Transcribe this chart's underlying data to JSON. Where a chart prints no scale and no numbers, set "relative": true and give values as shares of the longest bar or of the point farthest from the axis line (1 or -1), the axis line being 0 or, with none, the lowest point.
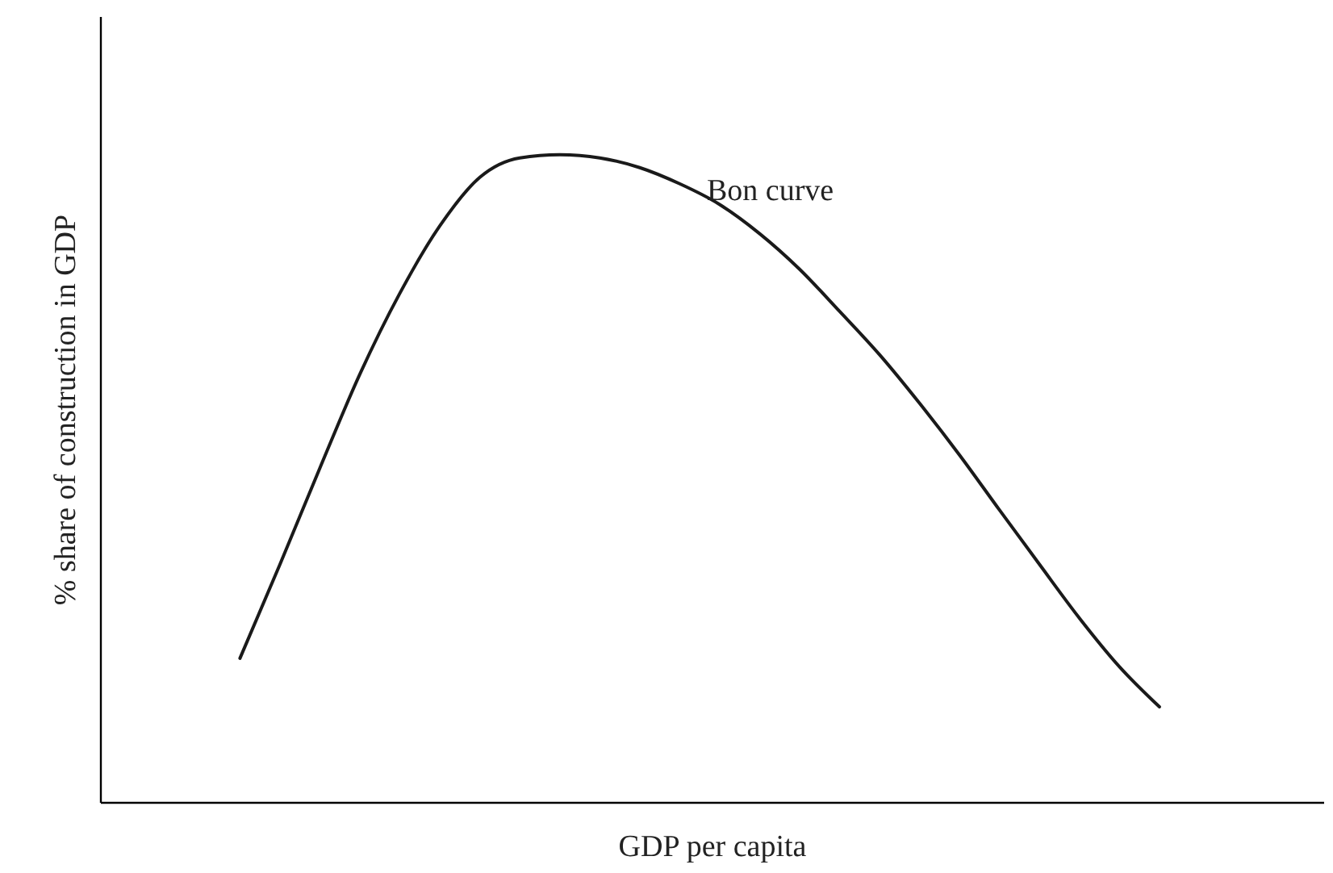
{
  "chart_data": {
    "type": "line",
    "relative": true,
    "tick_labels": false,
    "grid": false,
    "xlabel": "GDP per capita",
    "ylabel": "% share of construction in GDP",
    "annotations": [
      "Bon curve"
    ],
    "color": "#1a1a1a",
    "categories": [
      null,
      null,
      null,
      null,
      null,
      null,
      null,
      null,
      null,
      null,
      null,
      null,
      null,
      null,
      null,
      null,
      null,
      null,
      null,
      null,
      null,
      null,
      null,
      null
    ],
    "values": [
      0.222,
      0.367,
      0.516,
      0.661,
      0.786,
      0.89,
      0.965,
      0.995,
      1.0,
      0.995,
      0.98,
      0.955,
      0.923,
      0.878,
      0.823,
      0.758,
      0.691,
      0.616,
      0.536,
      0.451,
      0.367,
      0.284,
      0.209,
      0.147
    ]
  }
}
